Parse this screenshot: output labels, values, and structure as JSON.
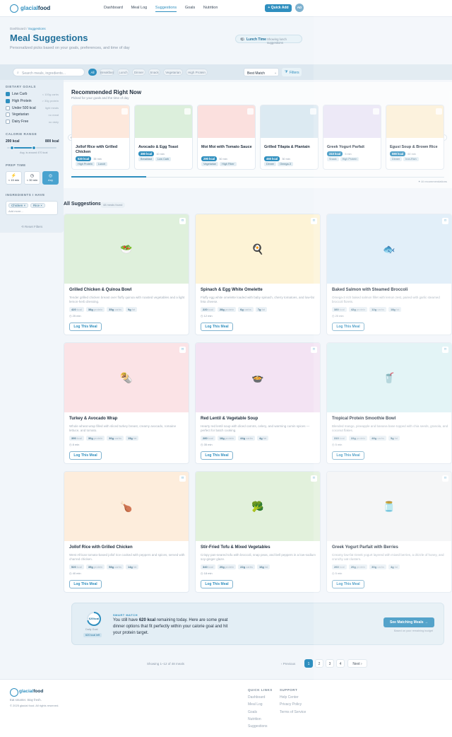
{
  "brand": {
    "name_a": "glacial",
    "name_b": "food"
  },
  "nav": [
    {
      "label": "Dashboard",
      "active": false
    },
    {
      "label": "Meal Log",
      "active": false
    },
    {
      "label": "Suggestions",
      "active": true
    },
    {
      "label": "Goals",
      "active": false
    },
    {
      "label": "Nutrition",
      "active": false
    }
  ],
  "header": {
    "quick_add": "+ Quick Add",
    "avatar": "AD"
  },
  "breadcrumb": {
    "root": "Dashboard",
    "sep": "/",
    "current": "Suggestions"
  },
  "page": {
    "title": "Meal Suggestions",
    "subtitle": "Personalized picks based on your goals, preferences, and time of day",
    "time_label": "Lunch Time",
    "time_note": "Showing lunch suggestions"
  },
  "filters": {
    "search_placeholder": "Search meals, ingredients...",
    "chips": [
      {
        "label": "All",
        "on": true
      },
      {
        "label": "Breakfast",
        "on": false
      },
      {
        "label": "Lunch",
        "on": false
      },
      {
        "label": "Dinner",
        "on": false
      },
      {
        "label": "Snack",
        "on": false
      },
      {
        "label": "Vegetarian",
        "on": false
      },
      {
        "label": "High Protein",
        "on": false
      }
    ],
    "sort": "Best Match",
    "filters_button": "Filters"
  },
  "sidebar": {
    "dietary_title": "DIETARY GOALS",
    "goals": [
      {
        "label": "Low Carb",
        "count": "< 100g carbs",
        "on": true
      },
      {
        "label": "High Protein",
        "count": "> 30g protein",
        "on": true
      },
      {
        "label": "Under 500 kcal",
        "count": "light meals",
        "on": false
      },
      {
        "label": "Vegetarian",
        "count": "no meat",
        "on": false
      },
      {
        "label": "Dairy Free",
        "count": "no dairy",
        "on": false
      }
    ],
    "calorie_title": "CALORIE RANGE",
    "cal_min": "200 kcal",
    "cal_max": "800 kcal",
    "cal_note": "Avg. is around 470 kcal",
    "prep_title": "PREP TIME",
    "prep": [
      {
        "icon": "⚡",
        "label": "< 15 min",
        "on": false
      },
      {
        "icon": "◷",
        "label": "< 30 min",
        "on": false
      },
      {
        "icon": "◎",
        "label": "Any",
        "on": true
      }
    ],
    "ing_title": "INGREDIENTS I HAVE",
    "ingredients": [
      "Chicken",
      "Rice"
    ],
    "ing_placeholder": "Add more...",
    "reset": "Reset Filters"
  },
  "recommended": {
    "title": "Recommended Right Now",
    "subtitle": "Picked for your goals and the time of day",
    "footnote": "AI recommendations",
    "items": [
      {
        "name": "Jollof Rice with Grilled Chicken",
        "kcal": "520 kcal",
        "time": "35 min",
        "tags": [
          "High Protein",
          "Lunch"
        ],
        "color": "#fde8dc"
      },
      {
        "name": "Avocado & Egg Toast",
        "kcal": "380 kcal",
        "time": "10 min",
        "tags": [
          "Breakfast",
          "Low Carb"
        ],
        "color": "#dcefdc"
      },
      {
        "name": "Moi Moi with Tomato Sauce",
        "kcal": "290 kcal",
        "time": "50 min",
        "tags": [
          "Vegetarian",
          "High Fiber"
        ],
        "color": "#fbe0de"
      },
      {
        "name": "Grilled Tilapia & Plantain",
        "kcal": "460 kcal",
        "time": "30 min",
        "tags": [
          "Dinner",
          "Omega-3"
        ],
        "color": "#dceaf2"
      },
      {
        "name": "Greek Yogurt Parfait",
        "kcal": "310 kcal",
        "time": "5 min",
        "tags": [
          "Snack",
          "High Protein"
        ],
        "color": "#e9e4f6"
      },
      {
        "name": "Egusi Soup & Brown Rice",
        "kcal": "590 kcal",
        "time": "60 min",
        "tags": [
          "Dinner",
          "Iron-Rich"
        ],
        "color": "#fcefd6"
      }
    ]
  },
  "all": {
    "title": "All Suggestions",
    "badge": "48 meals found",
    "log_label": "Log This Meal",
    "cards": [
      {
        "title": "Grilled Chicken & Quinoa Bowl",
        "desc": "Tender grilled chicken breast over fluffy quinoa with roasted vegetables and a light lemon-herb dressing.",
        "kcal": "420",
        "p": "38g",
        "c": "35g",
        "f": "9g",
        "time": "25 min",
        "icon": "🥗",
        "color": "#dff0dc"
      },
      {
        "title": "Spinach & Egg White Omelette",
        "desc": "Fluffy egg white omelette loaded with baby spinach, cherry tomatoes, and low-fat feta cheese.",
        "kcal": "220",
        "p": "28g",
        "c": "6g",
        "f": "7g",
        "time": "12 min",
        "icon": "🍳",
        "color": "#fdf3d6"
      },
      {
        "title": "Baked Salmon with Steamed Broccoli",
        "desc": "Omega-3 rich baked salmon fillet with lemon zest, paired with garlic steamed broccoli florets.",
        "kcal": "380",
        "p": "42g",
        "c": "12g",
        "f": "18g",
        "time": "20 min",
        "icon": "🐟",
        "color": "#dcecf8"
      },
      {
        "title": "Turkey & Avocado Wrap",
        "desc": "Whole wheat wrap filled with sliced turkey breast, creamy avocado, romaine lettuce, and tomato.",
        "kcal": "390",
        "p": "30g",
        "c": "36g",
        "f": "15g",
        "time": "8 min",
        "icon": "🌯",
        "color": "#fbe3e6"
      },
      {
        "title": "Red Lentil & Vegetable Soup",
        "desc": "Hearty red lentil soup with diced carrots, celery, and warming cumin spices — perfect for batch cooking.",
        "kcal": "280",
        "p": "18g",
        "c": "44g",
        "f": "4g",
        "time": "35 min",
        "icon": "🍲",
        "color": "#f3e3f3"
      },
      {
        "title": "Tropical Protein Smoothie Bowl",
        "desc": "Blended mango, pineapple and banana base topped with chia seeds, granola, and coconut flakes.",
        "kcal": "310",
        "p": "22g",
        "c": "48g",
        "f": "5g",
        "time": "5 min",
        "icon": "🥤",
        "color": "#ddf2f5"
      },
      {
        "title": "Jollof Rice with Grilled Chicken",
        "desc": "West African tomato-based jollof rice cooked with peppers and spices, served with charred chicken.",
        "kcal": "520",
        "p": "35g",
        "c": "58g",
        "f": "14g",
        "time": "40 min",
        "icon": "🍗",
        "color": "#fdeddc"
      },
      {
        "title": "Stir-Fried Tofu & Mixed Vegetables",
        "desc": "Crispy pan-seared tofu with broccoli, snap peas, and bell peppers in a low-sodium soy-ginger glaze.",
        "kcal": "340",
        "p": "20g",
        "c": "22g",
        "f": "16g",
        "time": "18 min",
        "icon": "🥦",
        "color": "#e2f1dc"
      },
      {
        "title": "Greek Yogurt Parfait with Berries",
        "desc": "Creamy low-fat Greek yogurt layered with mixed berries, a drizzle of honey, and crunchy oat clusters.",
        "kcal": "260",
        "p": "20g",
        "c": "30g",
        "f": "4g",
        "time": "5 min",
        "icon": "🫙",
        "color": "#f3f4f6"
      }
    ]
  },
  "smart": {
    "ring_value": "620",
    "ring_unit": "kcal",
    "ring_caption": "Daily Goal",
    "ring_badge": "620 kcal left",
    "eyebrow": "SMART MATCH",
    "text_a": "You still have ",
    "text_strong": "620 kcal",
    "text_b": " remaining today. Here are some great dinner options that fit perfectly within your calorie goal and hit your protein target.",
    "cta": "See Matching Meals",
    "cta_note": "Based on your remaining budget"
  },
  "pagination": {
    "summary": "Showing 1–12 of 48 meals",
    "prev": "Previous",
    "pages": [
      "1",
      "2",
      "3",
      "4"
    ],
    "next": "Next"
  },
  "footer": {
    "tagline": "Eat smarter. Stay fresh.",
    "copyright": "© 2025 glacial food. All rights reserved.",
    "quick_title": "QUICK LINKS",
    "quick": [
      "Dashboard",
      "Meal Log",
      "Goals",
      "Nutrition",
      "Suggestions"
    ],
    "support_title": "SUPPORT",
    "support": [
      "Help Center",
      "Privacy Policy",
      "Terms of Service"
    ]
  },
  "colors": {
    "accent": "#2f8fbf",
    "title": "#1f6f9a"
  }
}
